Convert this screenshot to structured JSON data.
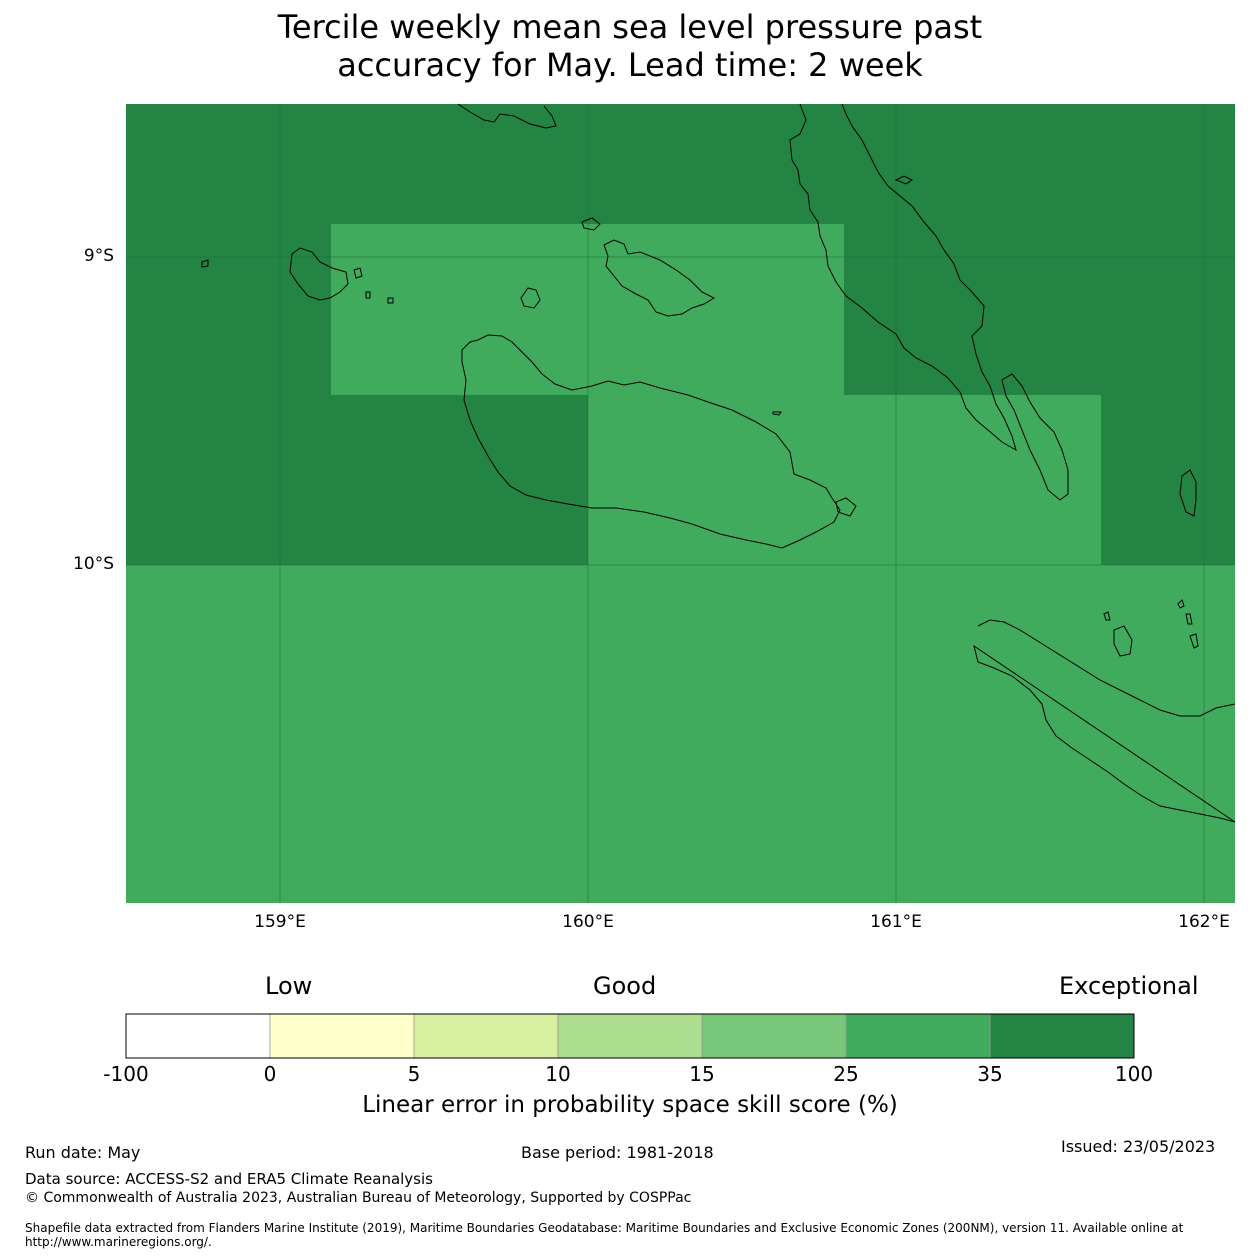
{
  "title": {
    "line1": "Tercile weekly mean sea level pressure past",
    "line2": "accuracy for May. Lead time: 2 week"
  },
  "map": {
    "lat_labels": [
      "9°S",
      "10°S"
    ],
    "lon_labels": [
      "159°E",
      "160°E",
      "161°E",
      "162°E"
    ],
    "background_color": "#41ab5d",
    "exceptional_color": "#238443"
  },
  "legend": {
    "categories": [
      "Low",
      "Good",
      "Exceptional"
    ],
    "ticks": [
      "-100",
      "0",
      "5",
      "10",
      "15",
      "25",
      "35",
      "100"
    ],
    "colors": [
      "#ffffff",
      "#ffffcc",
      "#d9f0a3",
      "#addd8e",
      "#78c679",
      "#41ab5d",
      "#238443"
    ],
    "title": "Linear error in probability space skill score (%)"
  },
  "footer": {
    "run_date": "Run date: May",
    "base_period": "Base period: 1981-2018",
    "issued": "Issued: 23/05/2023",
    "data_source": "Data source: ACCESS-S2 and ERA5 Climate Reanalysis",
    "copyright": "© Commonwealth of Australia 2023, Australian Bureau of Meteorology, Supported by COSPPac",
    "shapefile": "Shapefile data extracted from Flanders Marine Institute (2019), Maritime Boundaries Geodatabase: Maritime Boundaries and Exclusive Economic Zones (200NM), version 11. Available online at http://www.marineregions.org/."
  }
}
